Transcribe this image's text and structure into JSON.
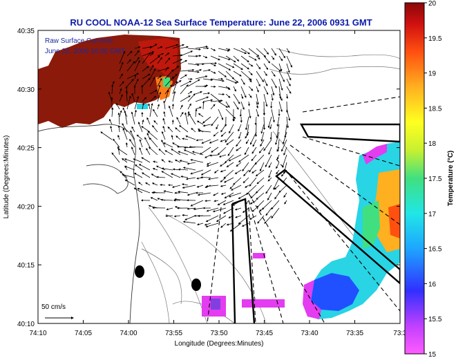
{
  "title": "RU COOL   NOAA-12  Sea Surface Temperature:  June 22, 2006 0931 GMT",
  "overlay": {
    "line1": "Raw Surface Currents",
    "line2": "June 22, 2006 10:00 GMT"
  },
  "axes": {
    "xlabel": "Longitude (Degrees:Minutes)",
    "ylabel": "Latitude (Degrees:Minutes)",
    "xticks": [
      "74:10",
      "74:05",
      "74:00",
      "73:55",
      "73:50",
      "73:45",
      "73:40",
      "73:35",
      "73:3"
    ],
    "yticks": [
      "40:35",
      "40:30",
      "40:25",
      "40:20",
      "40:15",
      "40:10"
    ]
  },
  "scale": {
    "label": "50 cm/s"
  },
  "colorbar": {
    "label": "Temperature (°C)",
    "ticks": [
      "20",
      "19.5",
      "19",
      "18.5",
      "18",
      "17.5",
      "17",
      "16.5",
      "16",
      "15.5",
      "15"
    ]
  },
  "colors": {
    "title": "#0a1aa8",
    "land": "#8b1a0a",
    "warm": "#c0180c",
    "cool_cyan": "#29d4e4",
    "magenta": "#e43cf0"
  }
}
